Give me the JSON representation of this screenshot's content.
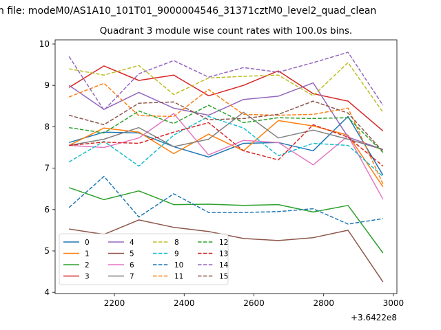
{
  "chart_data": {
    "type": "line",
    "suptitle": "n file: modeM0/AS1A10_101T01_9000004546_31371cztM0_level2_quad_clean",
    "title": "Quadrant 3 module wise count rates with 100.0s bins.",
    "xlabel": "",
    "ylabel": "",
    "x_offset_label": "+3.6422e8",
    "x": [
      2070,
      2170,
      2270,
      2370,
      2470,
      2570,
      2670,
      2770,
      2870,
      2970
    ],
    "xlim": [
      2030,
      3010
    ],
    "ylim": [
      3.97,
      10.1
    ],
    "xticks": [
      2200,
      2400,
      2600,
      2800,
      3000
    ],
    "xtick_labels": [
      "2200",
      "2400",
      "2600",
      "2800",
      "3000"
    ],
    "yticks": [
      4,
      5,
      6,
      7,
      8,
      9,
      10
    ],
    "ytick_labels": [
      "4",
      "5",
      "6",
      "7",
      "8",
      "9",
      "10"
    ],
    "grid": false,
    "legend_placement": "lower-left",
    "legend_columns": 4,
    "series": [
      {
        "name": "0",
        "color": "#1f77b4",
        "dash": "solid",
        "values": [
          7.62,
          7.87,
          7.85,
          7.52,
          7.27,
          7.6,
          7.62,
          7.42,
          8.25,
          6.83
        ]
      },
      {
        "name": "1",
        "color": "#ff7f0e",
        "dash": "solid",
        "values": [
          7.55,
          7.97,
          7.87,
          7.35,
          7.82,
          7.42,
          8.15,
          8.02,
          7.8,
          6.55
        ]
      },
      {
        "name": "2",
        "color": "#2ca02c",
        "dash": "solid",
        "values": [
          6.53,
          6.24,
          6.45,
          6.12,
          6.13,
          6.1,
          6.12,
          5.94,
          6.1,
          4.95
        ]
      },
      {
        "name": "3",
        "color": "#d62728",
        "dash": "solid",
        "values": [
          8.95,
          9.47,
          9.12,
          9.25,
          8.75,
          9.0,
          9.35,
          8.8,
          8.62,
          7.9
        ]
      },
      {
        "name": "4",
        "color": "#9467bd",
        "dash": "solid",
        "values": [
          9.0,
          8.42,
          8.83,
          8.45,
          8.28,
          8.66,
          8.74,
          9.06,
          7.75,
          7.45
        ]
      },
      {
        "name": "5",
        "color": "#8c564b",
        "dash": "solid",
        "values": [
          5.53,
          5.4,
          5.75,
          5.57,
          5.47,
          5.3,
          5.25,
          5.32,
          5.5,
          4.25
        ]
      },
      {
        "name": "6",
        "color": "#e377c2",
        "dash": "solid",
        "values": [
          7.55,
          7.5,
          7.73,
          8.32,
          7.32,
          7.67,
          7.62,
          7.08,
          7.78,
          6.25
        ]
      },
      {
        "name": "7",
        "color": "#7f7f7f",
        "dash": "solid",
        "values": [
          7.55,
          7.7,
          7.98,
          7.52,
          7.7,
          8.35,
          7.73,
          7.92,
          7.7,
          7.45
        ]
      },
      {
        "name": "8",
        "color": "#bcbd22",
        "dash": "dash",
        "values": [
          9.4,
          9.25,
          9.48,
          8.78,
          9.18,
          9.22,
          9.25,
          8.75,
          9.55,
          8.35
        ]
      },
      {
        "name": "9",
        "color": "#17becf",
        "dash": "dash",
        "values": [
          7.15,
          7.65,
          7.05,
          7.8,
          8.25,
          7.97,
          7.3,
          7.6,
          7.55,
          6.8
        ]
      },
      {
        "name": "10",
        "color": "#1f77b4",
        "dash": "dash",
        "values": [
          6.05,
          6.8,
          5.82,
          6.38,
          5.93,
          5.93,
          5.95,
          6.02,
          5.65,
          5.78
        ]
      },
      {
        "name": "11",
        "color": "#ff7f0e",
        "dash": "dash",
        "values": [
          8.72,
          9.05,
          8.27,
          8.25,
          8.9,
          8.3,
          8.28,
          8.3,
          8.45,
          6.62
        ]
      },
      {
        "name": "12",
        "color": "#2ca02c",
        "dash": "dash",
        "values": [
          7.98,
          7.85,
          8.38,
          8.08,
          8.52,
          8.1,
          8.22,
          8.2,
          8.22,
          7.38
        ]
      },
      {
        "name": "13",
        "color": "#d62728",
        "dash": "dash",
        "values": [
          7.55,
          7.63,
          7.6,
          7.87,
          8.1,
          7.42,
          7.2,
          8.05,
          7.75,
          7.05
        ]
      },
      {
        "name": "14",
        "color": "#9467bd",
        "dash": "dash",
        "values": [
          9.7,
          8.4,
          9.28,
          9.6,
          9.2,
          9.43,
          9.32,
          9.55,
          9.8,
          8.52
        ]
      },
      {
        "name": "15",
        "color": "#8c564b",
        "dash": "dash",
        "values": [
          8.28,
          8.05,
          8.57,
          8.6,
          8.17,
          8.2,
          8.3,
          8.62,
          8.33,
          7.4
        ]
      }
    ]
  }
}
